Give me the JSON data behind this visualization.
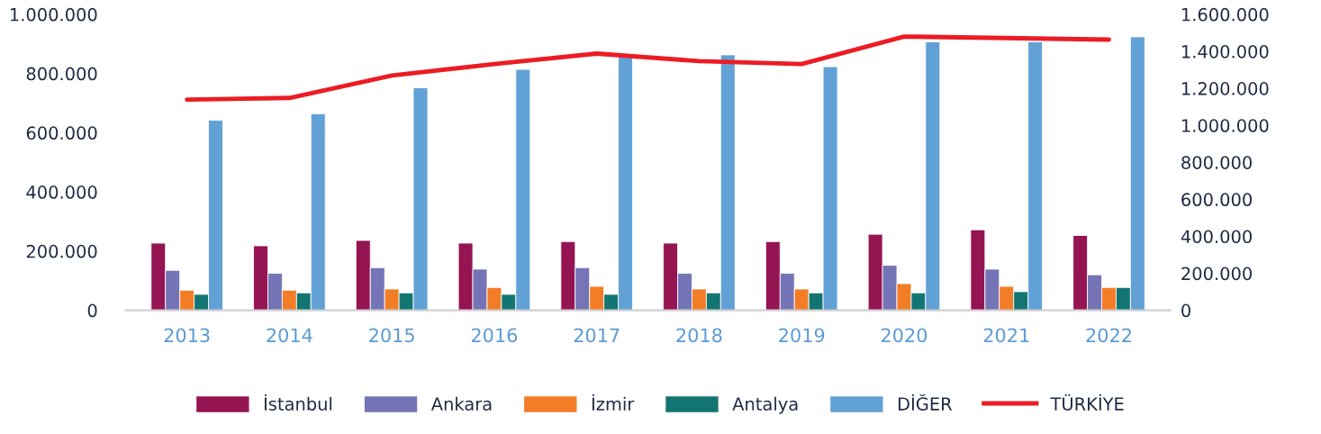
{
  "chart_data": {
    "type": "bar",
    "categories": [
      "2013",
      "2014",
      "2015",
      "2016",
      "2017",
      "2018",
      "2019",
      "2020",
      "2021",
      "2022"
    ],
    "series": [
      {
        "name": "İstanbul",
        "color": "#951452",
        "values": [
          227000,
          218000,
          236000,
          227000,
          232000,
          227000,
          232000,
          257000,
          272000,
          253000
        ]
      },
      {
        "name": "Ankara",
        "color": "#7474b6",
        "values": [
          135000,
          125000,
          144000,
          139000,
          144000,
          125000,
          125000,
          152000,
          139000,
          120000
        ]
      },
      {
        "name": "İzmir",
        "color": "#f37d27",
        "values": [
          68000,
          68000,
          72000,
          77000,
          81000,
          72000,
          72000,
          90000,
          81000,
          77000
        ]
      },
      {
        "name": "Antalya",
        "color": "#137571",
        "values": [
          54000,
          59000,
          59000,
          54000,
          54000,
          59000,
          59000,
          59000,
          63000,
          77000
        ]
      },
      {
        "name": "DİĞER",
        "color": "#62a1d6",
        "values": [
          642000,
          664000,
          752000,
          814000,
          861000,
          863000,
          823000,
          907000,
          907000,
          924000
        ]
      },
      {
        "name": "TÜRKİYE",
        "type": "line",
        "axis": "y2",
        "color": "#ec1c24",
        "values": [
          1139000,
          1148000,
          1269000,
          1331000,
          1388000,
          1347000,
          1331000,
          1480000,
          1472000,
          1463000
        ]
      }
    ],
    "ylim": [
      0,
      1000000
    ],
    "yticks": [
      {
        "value": 0,
        "label": "0"
      },
      {
        "value": 200000,
        "label": "200.000"
      },
      {
        "value": 400000,
        "label": "400.000"
      },
      {
        "value": 600000,
        "label": "600.000"
      },
      {
        "value": 800000,
        "label": "800.000"
      },
      {
        "value": 1000000,
        "label": "1.000.000"
      }
    ],
    "y2lim": [
      0,
      1600000
    ],
    "y2ticks": [
      {
        "value": 0,
        "label": "0"
      },
      {
        "value": 200000,
        "label": "200.000"
      },
      {
        "value": 400000,
        "label": "400.000"
      },
      {
        "value": 600000,
        "label": "600.000"
      },
      {
        "value": 800000,
        "label": "800.000"
      },
      {
        "value": 1000000,
        "label": "1.000.000"
      },
      {
        "value": 1200000,
        "label": "1.200.000"
      },
      {
        "value": 1400000,
        "label": "1.400.000"
      },
      {
        "value": 1600000,
        "label": "1.600.000"
      }
    ],
    "grid": false,
    "legend": "bottom"
  }
}
